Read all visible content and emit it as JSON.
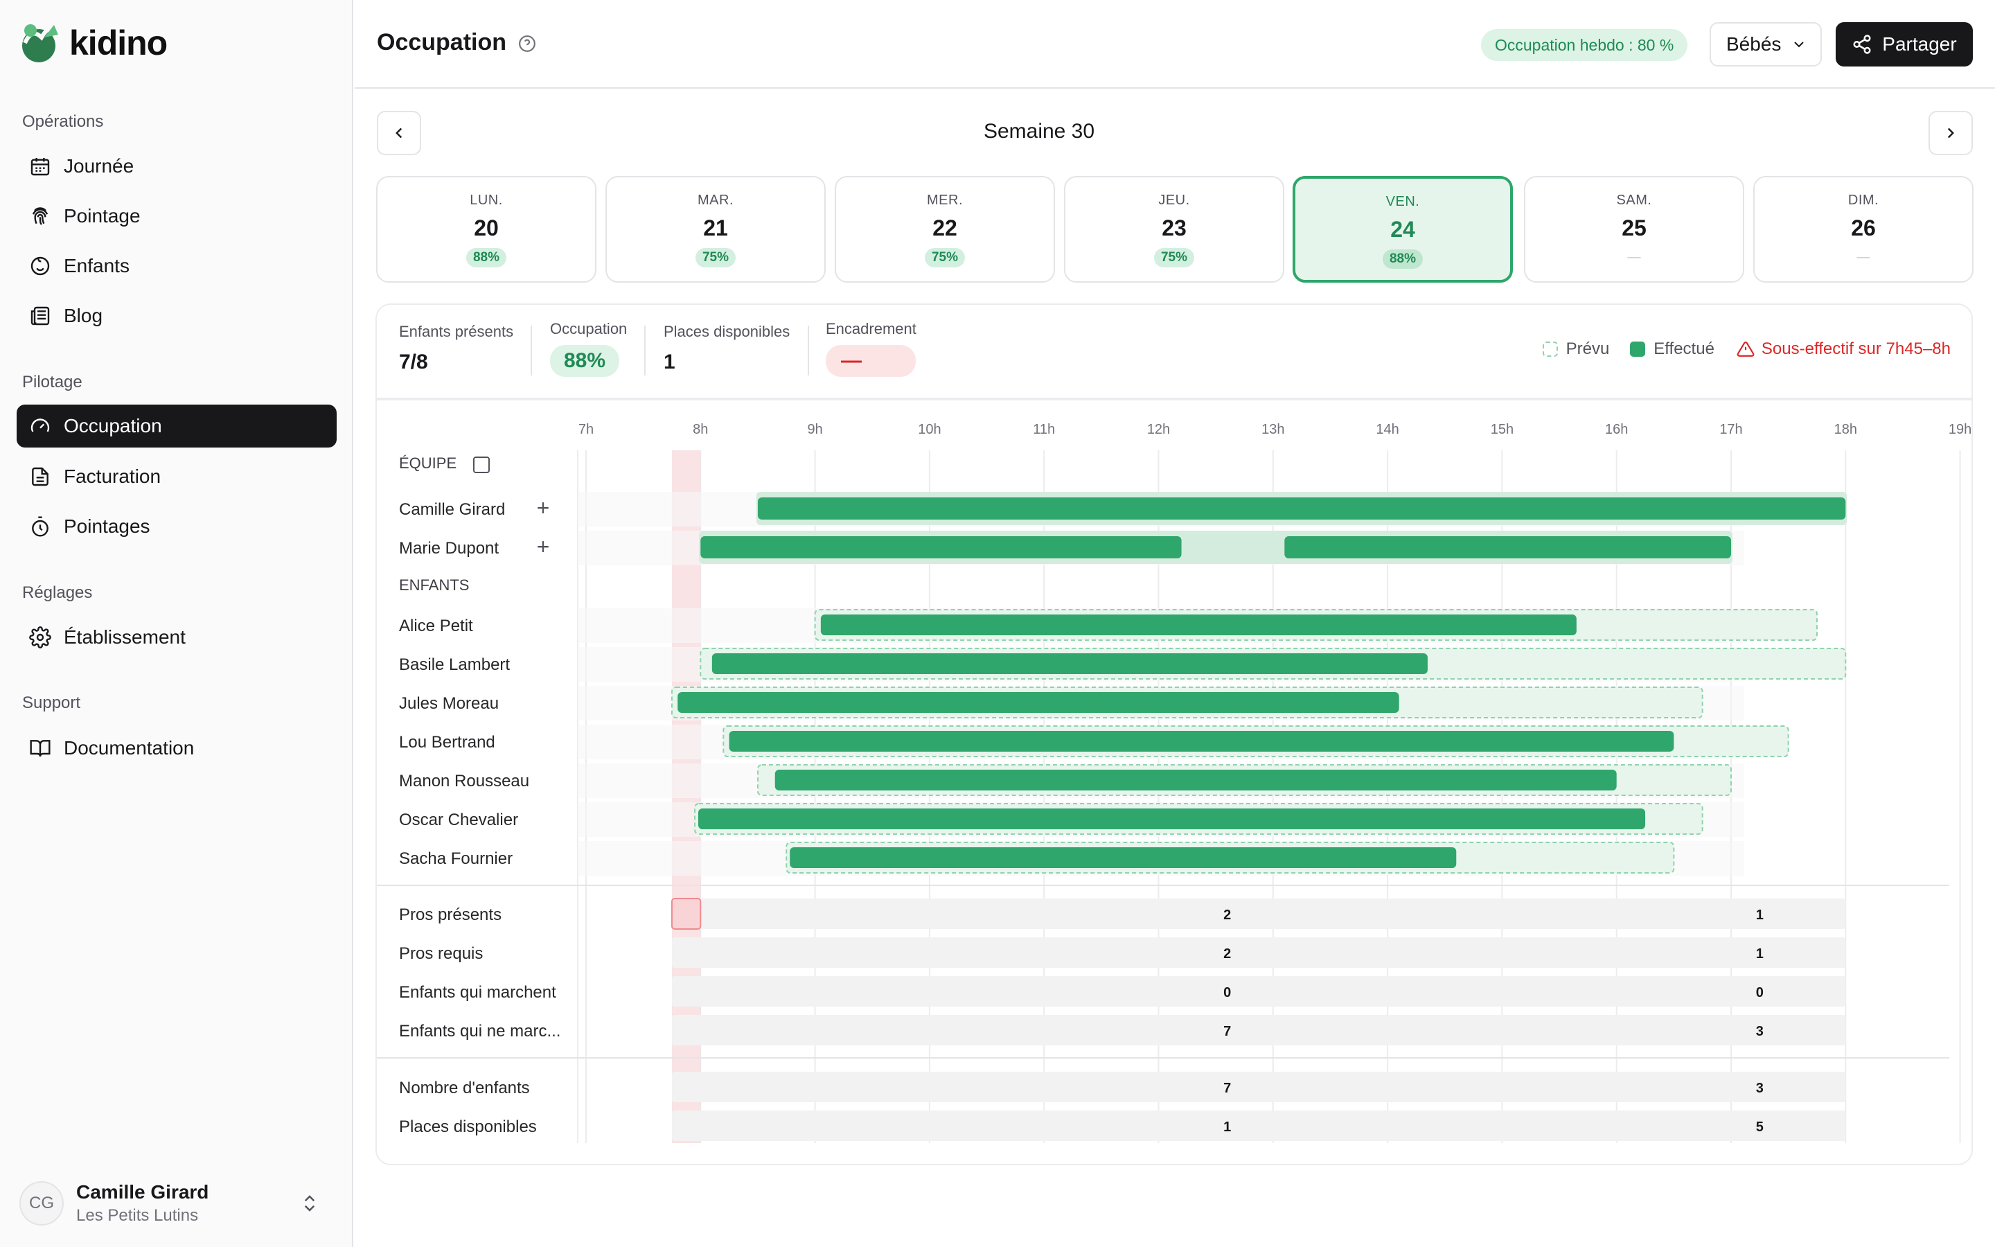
{
  "app": {
    "name": "kidino"
  },
  "sidebar": {
    "sections": [
      {
        "label": "Opérations",
        "items": [
          {
            "label": "Journée",
            "icon": "calendar-icon"
          },
          {
            "label": "Pointage",
            "icon": "fingerprint-icon"
          },
          {
            "label": "Enfants",
            "icon": "smile-icon"
          },
          {
            "label": "Blog",
            "icon": "newspaper-icon"
          }
        ]
      },
      {
        "label": "Pilotage",
        "items": [
          {
            "label": "Occupation",
            "icon": "gauge-icon",
            "active": true
          },
          {
            "label": "Facturation",
            "icon": "file-icon"
          },
          {
            "label": "Pointages",
            "icon": "timer-icon"
          }
        ]
      },
      {
        "label": "Réglages",
        "items": [
          {
            "label": "Établissement",
            "icon": "gear-icon"
          }
        ]
      },
      {
        "label": "Support",
        "items": [
          {
            "label": "Documentation",
            "icon": "book-icon"
          }
        ]
      }
    ],
    "user": {
      "initials": "CG",
      "name": "Camille Girard",
      "org": "Les Petits Lutins"
    }
  },
  "header": {
    "title": "Occupation",
    "weekly_badge": "Occupation hebdo : 80 %",
    "group_select": "Bébés",
    "share_label": "Partager"
  },
  "week": {
    "title": "Semaine 30",
    "days": [
      {
        "name": "LUN.",
        "num": "20",
        "pct": "88%"
      },
      {
        "name": "MAR.",
        "num": "21",
        "pct": "75%"
      },
      {
        "name": "MER.",
        "num": "22",
        "pct": "75%"
      },
      {
        "name": "JEU.",
        "num": "23",
        "pct": "75%"
      },
      {
        "name": "VEN.",
        "num": "24",
        "pct": "88%",
        "active": true
      },
      {
        "name": "SAM.",
        "num": "25",
        "pct": "—"
      },
      {
        "name": "DIM.",
        "num": "26",
        "pct": "—"
      }
    ]
  },
  "stats": {
    "children_present": {
      "label": "Enfants présents",
      "value": "7/8"
    },
    "occupation": {
      "label": "Occupation",
      "value": "88%"
    },
    "places": {
      "label": "Places disponibles",
      "value": "1"
    },
    "staffing": {
      "label": "Encadrement",
      "value": "—"
    }
  },
  "legend": {
    "planned": "Prévu",
    "done": "Effectué",
    "warning": "Sous-effectif sur 7h45–8h"
  },
  "timeline": {
    "hours": [
      "7h",
      "8h",
      "9h",
      "10h",
      "11h",
      "12h",
      "13h",
      "14h",
      "15h",
      "16h",
      "17h",
      "18h",
      "19h"
    ],
    "alert_window": [
      7.75,
      8.0
    ],
    "team_label": "ÉQUIPE",
    "team": [
      {
        "name": "Camille Girard",
        "planned": [
          [
            8.5,
            18.0
          ]
        ],
        "done": [
          [
            8.5,
            18.0
          ]
        ]
      },
      {
        "name": "Marie Dupont",
        "planned": [
          [
            8.0,
            17.0
          ]
        ],
        "done": [
          [
            8.0,
            12.2
          ],
          [
            13.1,
            17.0
          ]
        ]
      }
    ],
    "children_label": "ENFANTS",
    "children": [
      {
        "name": "Alice Petit",
        "planned": [
          9.0,
          17.75
        ],
        "done": [
          9.05,
          15.65
        ]
      },
      {
        "name": "Basile Lambert",
        "planned": [
          8.0,
          18.0
        ],
        "done": [
          8.1,
          14.35
        ]
      },
      {
        "name": "Jules Moreau",
        "planned": [
          7.75,
          16.75
        ],
        "done": [
          7.8,
          14.1
        ]
      },
      {
        "name": "Lou Bertrand",
        "planned": [
          8.2,
          17.5
        ],
        "done": [
          8.25,
          16.5
        ]
      },
      {
        "name": "Manon Rousseau",
        "planned": [
          8.5,
          17.0
        ],
        "done": [
          8.65,
          16.0
        ]
      },
      {
        "name": "Oscar Chevalier",
        "planned": [
          7.95,
          16.75
        ],
        "done": [
          7.98,
          16.25
        ]
      },
      {
        "name": "Sacha Fournier",
        "planned": [
          8.75,
          16.5
        ],
        "done": [
          8.78,
          14.6
        ]
      }
    ],
    "summary": [
      {
        "label": "Pros présents",
        "values": [
          "2",
          "1"
        ]
      },
      {
        "label": "Pros requis",
        "values": [
          "2",
          "1"
        ]
      },
      {
        "label": "Enfants qui marchent",
        "values": [
          "0",
          "0"
        ]
      },
      {
        "label": "Enfants qui ne marc...",
        "values": [
          "7",
          "3"
        ]
      }
    ],
    "summary2": [
      {
        "label": "Nombre d'enfants",
        "values": [
          "7",
          "3"
        ]
      },
      {
        "label": "Places disponibles",
        "values": [
          "1",
          "5"
        ]
      }
    ],
    "summary_value_hours": [
      12.6,
      17.25
    ],
    "colors": {
      "done": "#2fa66b",
      "planned_fill": "#e7f5ec",
      "planned_border": "#8fd3ad",
      "alert": "#f7d9db",
      "cell": "#f2f2f3"
    }
  }
}
